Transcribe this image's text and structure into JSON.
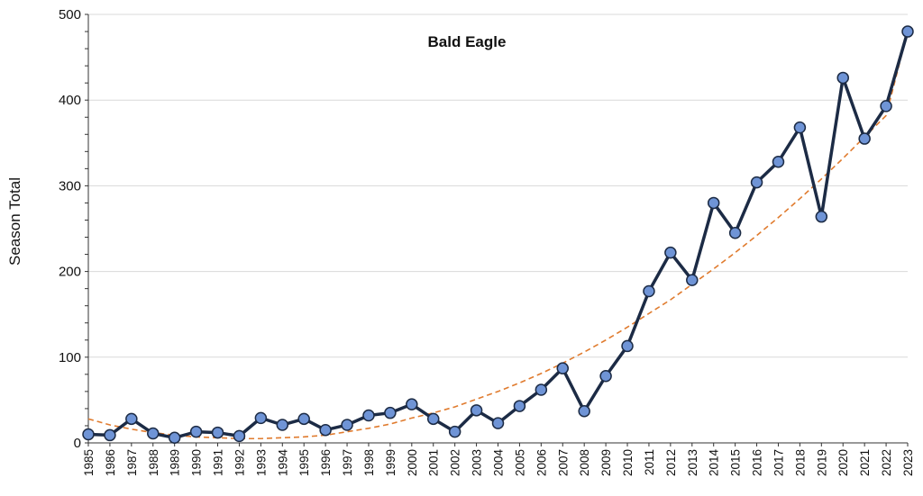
{
  "chart_data": {
    "type": "line",
    "title": "Bald Eagle",
    "xlabel": "",
    "ylabel": "Season Total",
    "ylim": [
      0,
      500
    ],
    "yticks": [
      0,
      100,
      200,
      300,
      400,
      500
    ],
    "grid": true,
    "legend": "none",
    "categories": [
      "1985",
      "1986",
      "1987",
      "1988",
      "1989",
      "1990",
      "1991",
      "1992",
      "1993",
      "1994",
      "1995",
      "1996",
      "1997",
      "1998",
      "1999",
      "2000",
      "2001",
      "2002",
      "2003",
      "2004",
      "2005",
      "2006",
      "2007",
      "2008",
      "2009",
      "2010",
      "2011",
      "2012",
      "2013",
      "2014",
      "2015",
      "2016",
      "2017",
      "2018",
      "2019",
      "2020",
      "2021",
      "2022",
      "2023"
    ],
    "series": [
      {
        "values": [
          10,
          9,
          28,
          11,
          6,
          13,
          12,
          8,
          29,
          21,
          28,
          15,
          21,
          32,
          35,
          45,
          28,
          13,
          38,
          23,
          43,
          62,
          87,
          37,
          78,
          113,
          177,
          222,
          190,
          280,
          245,
          304,
          328,
          368,
          264,
          426,
          355,
          393,
          480
        ],
        "line_color": "#1c2b45",
        "marker_color": "#6f94d6"
      },
      {
        "type": "trendline",
        "style": "dashed",
        "values": [
          28,
          21,
          16,
          12,
          9,
          7,
          6,
          5,
          5,
          6,
          7,
          9,
          13,
          17,
          22,
          29,
          35,
          42,
          51,
          60,
          70,
          81,
          93,
          106,
          120,
          135,
          151,
          167,
          185,
          203,
          222,
          242,
          263,
          285,
          308,
          332,
          357,
          382,
          480
        ],
        "color": "#e07b2e"
      }
    ]
  }
}
